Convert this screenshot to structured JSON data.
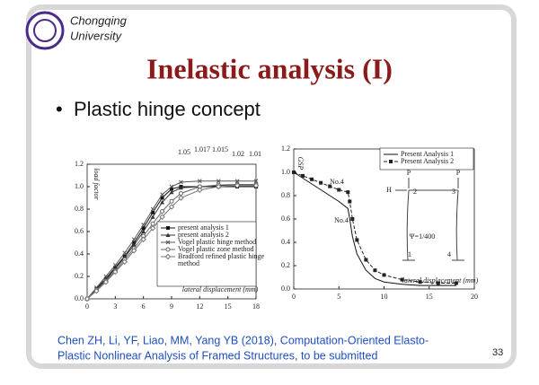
{
  "slide": {
    "university": [
      "Chongqing",
      "University"
    ],
    "title": "Inelastic analysis (I)",
    "bullet": "Plastic hinge concept",
    "citation": [
      "Chen ZH, Li, YF, Liao, MM, Yang YB (2018), Computation-Oriented Elasto-",
      "Plastic Nonlinear Analysis of Framed Structures, to be submitted"
    ],
    "page_number": "33"
  },
  "chart_data": [
    {
      "type": "line",
      "ylabel": "load factor",
      "xlabel": "lateral displacement (mm)",
      "xlim": [
        0,
        18
      ],
      "xticks": [
        0,
        3,
        6,
        9,
        12,
        15,
        18
      ],
      "ylim": [
        0,
        1.2
      ],
      "yticks": [
        {
          "value": 0,
          "label": "0.0"
        },
        0.2,
        0.4,
        0.6,
        0.8,
        {
          "value": 1,
          "label": "1.0"
        },
        1.2
      ],
      "annotations": [
        "1.05",
        "1.017",
        "1.015",
        "1.02",
        "1.01"
      ],
      "series": [
        {
          "name": "present analysis 1",
          "color": "#111111",
          "marker": "square",
          "x": [
            0,
            1,
            2,
            3,
            4,
            5,
            6,
            7,
            8,
            9,
            10,
            12,
            14,
            16,
            18
          ],
          "values": [
            0,
            0.09,
            0.18,
            0.28,
            0.38,
            0.5,
            0.63,
            0.77,
            0.9,
            0.98,
            1.0,
            1.0,
            1.0,
            1.0,
            1.0
          ]
        },
        {
          "name": "present analysis 2",
          "color": "#333333",
          "marker": "triangle",
          "x": [
            0,
            1,
            2,
            3,
            4,
            5,
            6,
            7,
            8,
            9,
            10,
            12,
            14,
            16,
            18
          ],
          "values": [
            0,
            0.08,
            0.17,
            0.27,
            0.37,
            0.48,
            0.6,
            0.73,
            0.86,
            0.95,
            0.99,
            1.0,
            1.01,
            1.01,
            1.01
          ]
        },
        {
          "name": "Vogel plastic hinge method",
          "color": "#555555",
          "marker": "cross",
          "x": [
            0,
            1,
            2,
            3,
            4,
            5,
            6,
            7,
            8,
            9,
            10,
            12,
            14,
            16,
            18
          ],
          "values": [
            0,
            0.1,
            0.2,
            0.3,
            0.41,
            0.53,
            0.66,
            0.8,
            0.93,
            1.0,
            1.04,
            1.05,
            1.05,
            1.05,
            1.05
          ]
        },
        {
          "name": "Vogel plastic zone method",
          "color": "#666666",
          "marker": "circle",
          "x": [
            0,
            1,
            2,
            3,
            4,
            5,
            6,
            7,
            8,
            9,
            10,
            12,
            14,
            16,
            18
          ],
          "values": [
            0,
            0.08,
            0.16,
            0.25,
            0.35,
            0.45,
            0.56,
            0.67,
            0.78,
            0.87,
            0.94,
            1.0,
            1.015,
            1.02,
            1.02
          ]
        },
        {
          "name": "Bradford refined plastic hinge method",
          "color": "#777777",
          "marker": "diamond",
          "x": [
            0,
            1,
            2,
            3,
            4,
            5,
            6,
            7,
            8,
            9,
            10,
            12,
            14,
            16,
            18
          ],
          "values": [
            0,
            0.07,
            0.15,
            0.24,
            0.33,
            0.43,
            0.53,
            0.63,
            0.73,
            0.82,
            0.9,
            0.97,
            1.0,
            1.01,
            1.01
          ]
        }
      ]
    },
    {
      "type": "line",
      "ylabel": "GSP",
      "xlabel": "lateral displacement (mm)",
      "xlim": [
        0,
        20
      ],
      "xticks": [
        0,
        5,
        10,
        15,
        20
      ],
      "ylim": [
        0,
        1.2
      ],
      "yticks": [
        {
          "value": 0,
          "label": "0.0"
        },
        0.2,
        0.4,
        0.6,
        0.8,
        {
          "value": 1,
          "label": "1.0"
        },
        1.2
      ],
      "annotations": [
        "No.4",
        "No.4"
      ],
      "diagram_labels": [
        "P",
        "P",
        "H",
        "2",
        "3",
        "Ψ=1/400",
        "1",
        "4"
      ],
      "series": [
        {
          "name": "Present Analysis 1",
          "color": "#111111",
          "marker": "none",
          "dash": "",
          "x": [
            0,
            1,
            2,
            3,
            4,
            5,
            6,
            6.2,
            6.5,
            7,
            8,
            9,
            10,
            12,
            14,
            16,
            18
          ],
          "values": [
            1.0,
            0.95,
            0.9,
            0.85,
            0.8,
            0.75,
            0.69,
            0.6,
            0.45,
            0.3,
            0.16,
            0.09,
            0.06,
            0.04,
            0.03,
            0.03,
            0.03
          ]
        },
        {
          "name": "Present Analysis 2",
          "color": "#222222",
          "marker": "square",
          "dash": "4 2",
          "x": [
            0,
            1,
            2,
            3,
            4,
            5,
            6,
            6.2,
            6.5,
            7,
            8,
            9,
            10,
            12,
            14,
            16,
            18
          ],
          "values": [
            1.0,
            0.97,
            0.94,
            0.91,
            0.88,
            0.85,
            0.83,
            0.75,
            0.6,
            0.42,
            0.25,
            0.16,
            0.12,
            0.08,
            0.06,
            0.05,
            0.05
          ]
        }
      ]
    }
  ]
}
